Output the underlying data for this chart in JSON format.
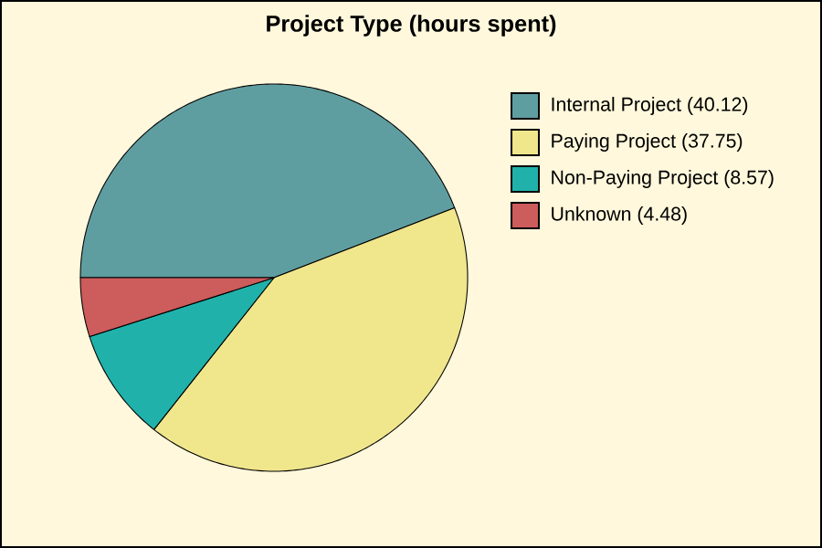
{
  "chart_data": {
    "type": "pie",
    "title": "Project Type (hours spent)",
    "categories": [
      "Internal Project (40.12)",
      "Paying Project (37.75)",
      "Non-Paying Project (8.57)",
      "Unknown (4.48)"
    ],
    "values": [
      40.12,
      37.75,
      8.57,
      4.48
    ],
    "colors": [
      "#5f9ea0",
      "#f0e68c",
      "#20b2aa",
      "#cd5c5c"
    ],
    "legend": "right"
  }
}
